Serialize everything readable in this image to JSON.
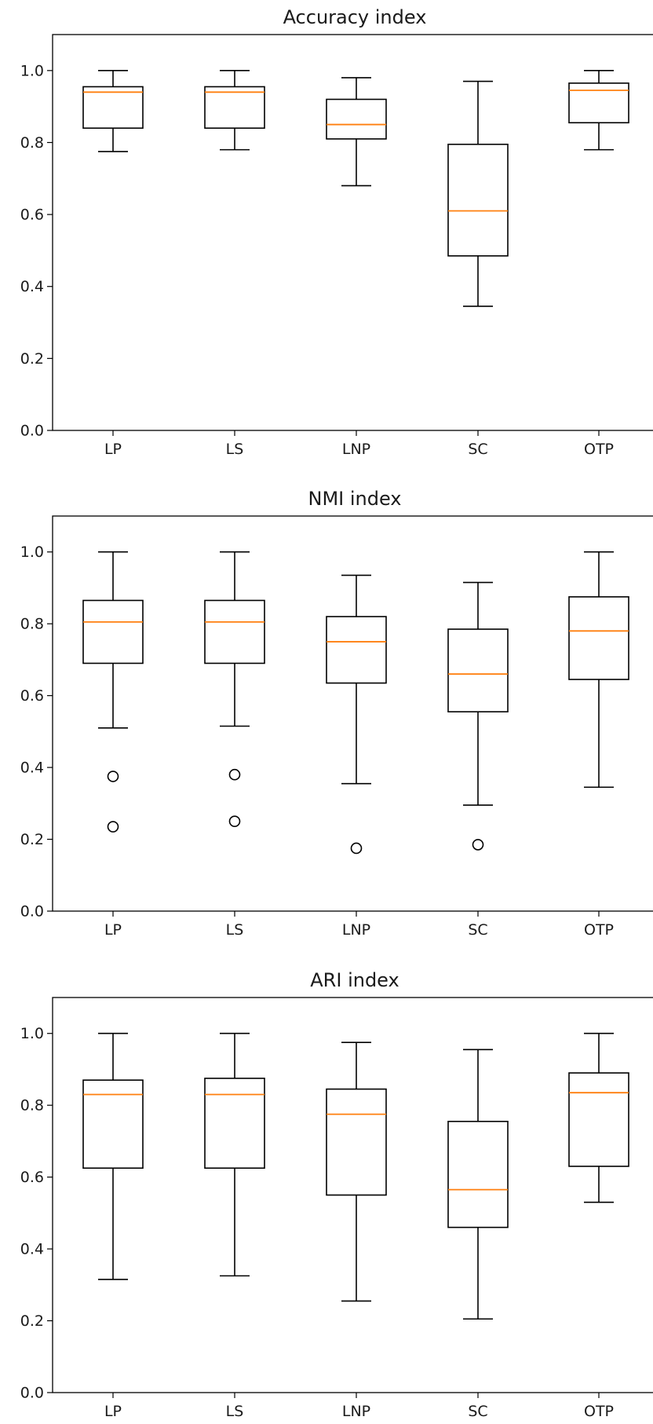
{
  "chart_data": [
    {
      "type": "boxplot",
      "title": "Accuracy index",
      "categories": [
        "LP",
        "LS",
        "LNP",
        "SC",
        "OTP"
      ],
      "ylim": [
        0.0,
        1.1
      ],
      "yticks": [
        "0.0",
        "0.2",
        "0.4",
        "0.6",
        "0.8",
        "1.0"
      ],
      "boxes": [
        {
          "whislo": 0.775,
          "q1": 0.84,
          "med": 0.94,
          "q3": 0.955,
          "whishi": 1.0,
          "fliers": []
        },
        {
          "whislo": 0.78,
          "q1": 0.84,
          "med": 0.94,
          "q3": 0.955,
          "whishi": 1.0,
          "fliers": []
        },
        {
          "whislo": 0.68,
          "q1": 0.81,
          "med": 0.85,
          "q3": 0.92,
          "whishi": 0.98,
          "fliers": []
        },
        {
          "whislo": 0.345,
          "q1": 0.485,
          "med": 0.61,
          "q3": 0.795,
          "whishi": 0.97,
          "fliers": []
        },
        {
          "whislo": 0.78,
          "q1": 0.855,
          "med": 0.945,
          "q3": 0.965,
          "whishi": 1.0,
          "fliers": []
        }
      ]
    },
    {
      "type": "boxplot",
      "title": "NMI index",
      "categories": [
        "LP",
        "LS",
        "LNP",
        "SC",
        "OTP"
      ],
      "ylim": [
        0.0,
        1.1
      ],
      "yticks": [
        "0.0",
        "0.2",
        "0.4",
        "0.6",
        "0.8",
        "1.0"
      ],
      "boxes": [
        {
          "whislo": 0.51,
          "q1": 0.69,
          "med": 0.805,
          "q3": 0.865,
          "whishi": 1.0,
          "fliers": [
            0.375,
            0.235
          ]
        },
        {
          "whislo": 0.515,
          "q1": 0.69,
          "med": 0.805,
          "q3": 0.865,
          "whishi": 1.0,
          "fliers": [
            0.38,
            0.25
          ]
        },
        {
          "whislo": 0.355,
          "q1": 0.635,
          "med": 0.75,
          "q3": 0.82,
          "whishi": 0.935,
          "fliers": [
            0.175
          ]
        },
        {
          "whislo": 0.295,
          "q1": 0.555,
          "med": 0.66,
          "q3": 0.785,
          "whishi": 0.915,
          "fliers": [
            0.185
          ]
        },
        {
          "whislo": 0.345,
          "q1": 0.645,
          "med": 0.78,
          "q3": 0.875,
          "whishi": 1.0,
          "fliers": []
        }
      ]
    },
    {
      "type": "boxplot",
      "title": "ARI index",
      "categories": [
        "LP",
        "LS",
        "LNP",
        "SC",
        "OTP"
      ],
      "ylim": [
        0.0,
        1.1
      ],
      "yticks": [
        "0.0",
        "0.2",
        "0.4",
        "0.6",
        "0.8",
        "1.0"
      ],
      "boxes": [
        {
          "whislo": 0.315,
          "q1": 0.625,
          "med": 0.83,
          "q3": 0.87,
          "whishi": 1.0,
          "fliers": []
        },
        {
          "whislo": 0.325,
          "q1": 0.625,
          "med": 0.83,
          "q3": 0.875,
          "whishi": 1.0,
          "fliers": []
        },
        {
          "whislo": 0.255,
          "q1": 0.55,
          "med": 0.775,
          "q3": 0.845,
          "whishi": 0.975,
          "fliers": []
        },
        {
          "whislo": 0.205,
          "q1": 0.46,
          "med": 0.565,
          "q3": 0.755,
          "whishi": 0.955,
          "fliers": []
        },
        {
          "whislo": 0.53,
          "q1": 0.63,
          "med": 0.835,
          "q3": 0.89,
          "whishi": 1.0,
          "fliers": []
        }
      ]
    }
  ],
  "colors": {
    "box": "#000000",
    "median": "#ff7f0e",
    "axes": "#000000",
    "text": "#1a1a1a",
    "background": "#ffffff"
  }
}
